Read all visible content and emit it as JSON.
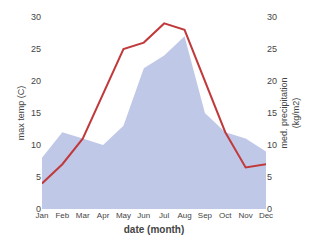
{
  "chart_data": {
    "type": "line",
    "xlabel": "date (month)",
    "ylabel": "max temp (C)",
    "y2label": "med. precipitation\n(kg/m2)",
    "categories": [
      "Jan",
      "Feb",
      "Mar",
      "Apr",
      "May",
      "Jun",
      "Jul",
      "Aug",
      "Sep",
      "Oct",
      "Nov",
      "Dec"
    ],
    "series": [
      {
        "type": "line",
        "color": "#c0393b",
        "values": [
          4,
          7,
          11,
          18,
          25,
          26,
          29,
          28,
          20,
          12,
          6.5,
          7
        ]
      },
      {
        "type": "area",
        "color": "#c0c8e8",
        "axis": "y2",
        "values": [
          8,
          12,
          11,
          10,
          13,
          22,
          24,
          27,
          15,
          12,
          11,
          9
        ]
      }
    ],
    "ylim": [
      0,
      30
    ],
    "yticks": [
      0,
      5,
      10,
      15,
      20,
      25,
      30
    ],
    "y2lim": [
      0,
      30
    ],
    "y2ticks": [
      0,
      5,
      10,
      15,
      20,
      25,
      30
    ],
    "grid": false
  }
}
